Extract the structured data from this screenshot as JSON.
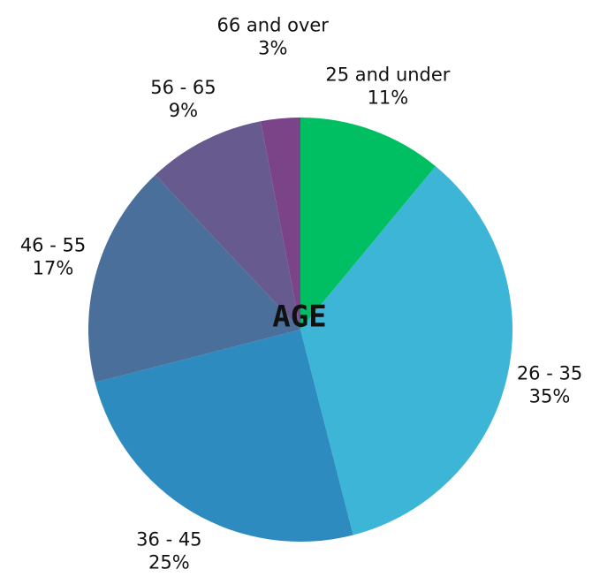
{
  "chart_data": {
    "type": "pie",
    "title": "AGE",
    "categories": [
      "25 and under",
      "26 - 35",
      "36 - 45",
      "46 - 55",
      "56 - 65",
      "66 and over"
    ],
    "values": [
      11,
      35,
      25,
      17,
      9,
      3
    ],
    "value_labels": [
      "11%",
      "35%",
      "25%",
      "17%",
      "9%",
      "3%"
    ],
    "colors": [
      "#00bf63",
      "#3db5d6",
      "#2e8bbf",
      "#4a6f9a",
      "#675a8e",
      "#7b4488"
    ]
  }
}
